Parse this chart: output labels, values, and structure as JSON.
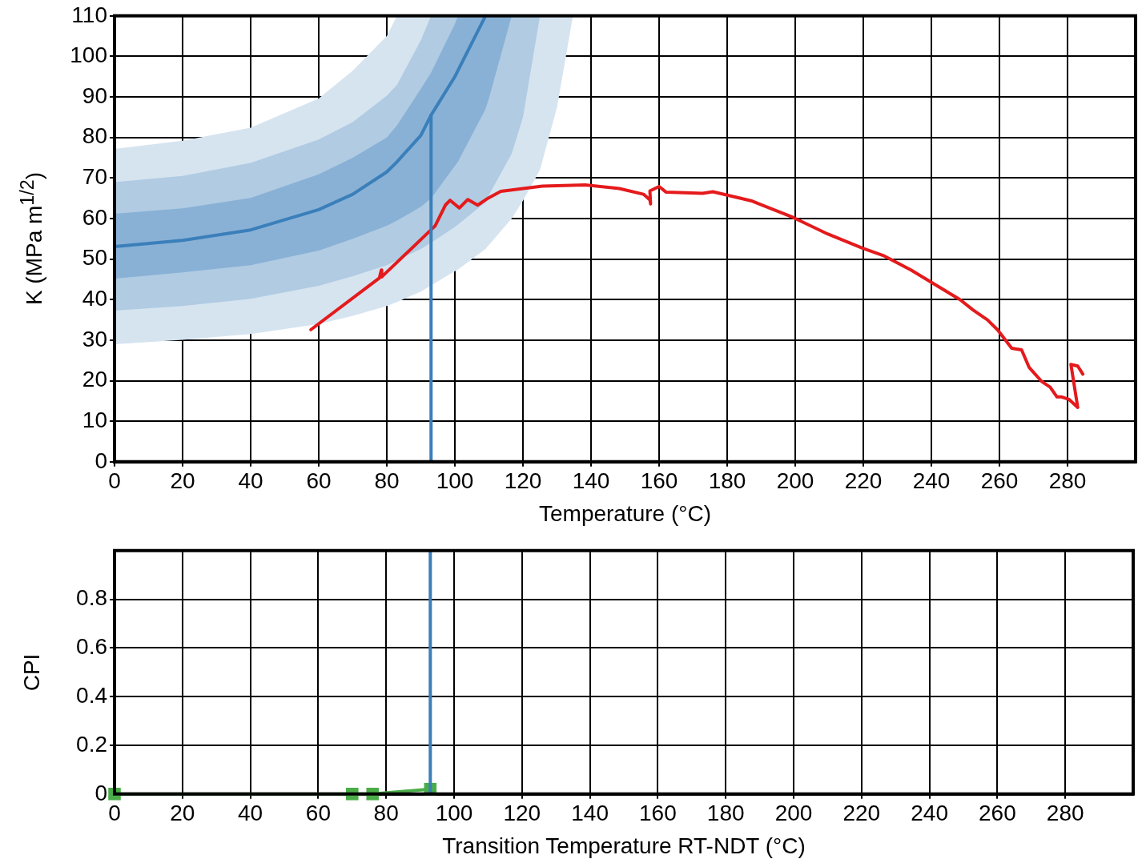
{
  "chart_data": [
    {
      "type": "line",
      "xlabel": "Temperature (°C)",
      "ylabel": "K (MPa m$^{1/2}$)",
      "xlim": [
        0,
        300
      ],
      "xticks": [
        0,
        20,
        40,
        60,
        80,
        100,
        120,
        140,
        160,
        180,
        200,
        220,
        240,
        260,
        280
      ],
      "ylim": [
        0,
        110
      ],
      "yticks": [
        0,
        10,
        20,
        30,
        40,
        50,
        60,
        70,
        80,
        90,
        100,
        110
      ],
      "grid": true,
      "series": [
        {
          "color": "#d6e4f0",
          "x": [
            0,
            20,
            40,
            60,
            70,
            80,
            83,
            90,
            93,
            100,
            100.9,
            109,
            110,
            116.7,
            120,
            125,
            130,
            134.7
          ],
          "values": [
            null,
            null,
            null,
            null,
            null,
            null,
            null,
            null,
            null,
            null,
            null,
            null,
            null,
            null,
            null,
            null,
            null,
            null
          ],
          "upper": [
            77.2,
            79.2,
            82.4,
            89.6,
            96.5,
            105,
            110,
            110,
            110,
            110,
            110,
            110,
            110,
            110,
            110,
            110,
            110,
            110
          ],
          "lower": [
            29,
            30.1,
            31.5,
            34,
            36,
            38.4,
            39.4,
            42,
            43.5,
            47,
            47.4,
            52.5,
            53.5,
            60,
            64.4,
            72,
            87.4,
            110
          ]
        },
        {
          "color": "#b0cbe2",
          "x": [
            0,
            20,
            40,
            60,
            70,
            80,
            83,
            90,
            93,
            100,
            100.9,
            109,
            110,
            116.7,
            120,
            125
          ],
          "values": [
            null,
            null,
            null,
            null,
            null,
            null,
            null,
            null,
            null,
            null,
            null,
            null,
            null,
            null,
            null,
            null
          ],
          "upper": [
            69,
            70.5,
            73.7,
            79.5,
            83.8,
            90.3,
            93,
            104,
            110,
            110,
            110,
            110,
            110,
            110,
            110,
            110
          ],
          "lower": [
            37.3,
            38.4,
            40.2,
            43.4,
            45.8,
            48.5,
            49.7,
            52.5,
            54,
            57.9,
            58.5,
            64,
            65.8,
            76,
            85,
            110
          ]
        },
        {
          "color": "#89b1d6",
          "x": [
            0,
            20,
            40,
            60,
            70,
            80,
            83,
            90,
            93,
            100,
            100.9,
            109,
            110,
            116.7
          ],
          "values": [
            null,
            null,
            null,
            null,
            null,
            null,
            null,
            null,
            null,
            null,
            null,
            null,
            null,
            null
          ],
          "upper": [
            61.2,
            62.5,
            65.1,
            70.9,
            75,
            80,
            83,
            92,
            96,
            108,
            110,
            110,
            110,
            110
          ],
          "lower": [
            45.2,
            46.7,
            48.5,
            52.1,
            55,
            58.2,
            59.5,
            62.9,
            65,
            73,
            74,
            87,
            89.6,
            110
          ]
        },
        {
          "color": "#3a7fba",
          "x": [
            0,
            20,
            40,
            60,
            70,
            80,
            83,
            90,
            93,
            100,
            100.9,
            109
          ],
          "values": [
            53.1,
            54.6,
            57.2,
            62.2,
            66,
            71.5,
            74,
            80.5,
            85.5,
            95,
            96.5,
            110
          ]
        },
        {
          "color": "#3a7fba",
          "x": [
            93,
            93
          ],
          "values": [
            0,
            85.5
          ]
        },
        {
          "color": "#e41a1c",
          "x": [
            57.7,
            77,
            77.8,
            78.4,
            78.5,
            94.2,
            97.2,
            98.6,
            101.3,
            103.8,
            106.7,
            109.9,
            113.5,
            125.7,
            138.3,
            148.3,
            155.4,
            157.3,
            157.5,
            157.3,
            160,
            162.1,
            172.8,
            175.8,
            187,
            199.3,
            209.5,
            219.7,
            225.8,
            234,
            248.4,
            252.3,
            256.5,
            259.5,
            263.6,
            266.5,
            268.7,
            272.3,
            274.9,
            276.9,
            278.3,
            280.4,
            283,
            281,
            283,
            284.5
          ],
          "values": [
            32.6,
            44.8,
            45.3,
            47.3,
            45.6,
            58.2,
            63.3,
            64.5,
            62.6,
            64.7,
            63.3,
            65.1,
            66.7,
            68,
            68.3,
            67.4,
            66,
            64.6,
            63.6,
            66.8,
            67.9,
            66.5,
            66.2,
            66.6,
            64.4,
            60.3,
            56.2,
            52.7,
            50.9,
            47.3,
            40,
            37.4,
            35,
            32.5,
            28,
            27.6,
            23.3,
            19.9,
            18.4,
            16,
            16,
            15.4,
            13.4,
            24,
            23.6,
            21.6
          ]
        }
      ]
    },
    {
      "type": "line",
      "xlabel": "Transition Temperature RT-NDT (°C)",
      "ylabel": "CPI",
      "xlim": [
        0,
        300
      ],
      "xticks": [
        0,
        20,
        40,
        60,
        80,
        100,
        120,
        140,
        160,
        180,
        200,
        220,
        240,
        260,
        280
      ],
      "ylim": [
        0,
        1
      ],
      "yticks": [
        0,
        0.2,
        0.4,
        0.6,
        0.8
      ],
      "grid": true,
      "marker": "square",
      "series": [
        {
          "color": "#4aad48",
          "x": [
            0,
            70,
            76,
            93
          ],
          "values": [
            0,
            0,
            0,
            0.02
          ]
        }
      ],
      "ref_lines": [
        {
          "axis": "x",
          "value": 93,
          "color": "#3a7fba"
        }
      ]
    }
  ]
}
